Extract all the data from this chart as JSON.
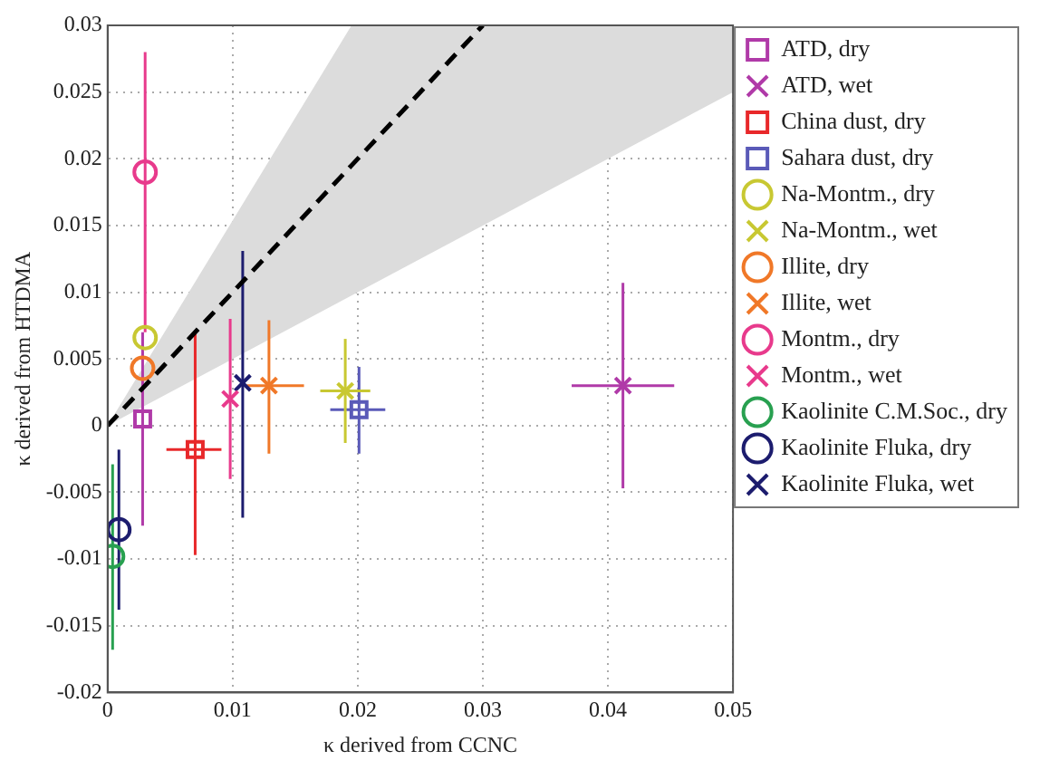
{
  "chart_data": {
    "type": "scatter",
    "xlabel": "κ derived from CCNC",
    "ylabel": "κ derived from HTDMA",
    "xlim": [
      0,
      0.05
    ],
    "xticks": [
      0,
      0.01,
      0.02,
      0.03,
      0.04,
      0.05
    ],
    "ylim": [
      -0.02,
      0.03
    ],
    "yticks": [
      -0.02,
      -0.015,
      -0.01,
      -0.005,
      0,
      0.005,
      0.01,
      0.015,
      0.02,
      0.025,
      0.03
    ],
    "grid": true,
    "legend": "right",
    "line_style": "dashed",
    "series": [
      {
        "type": "line",
        "color": "#000000",
        "marker": "none",
        "x": [
          0,
          0.0195,
          0.03,
          0.05
        ],
        "values": [
          0,
          0.0195,
          0.03,
          null
        ],
        "lower": [
          0,
          0.00975,
          0.015,
          0.025
        ],
        "upper": [
          0,
          0.03,
          0.03,
          0.03
        ]
      },
      {
        "name": "ATD, dry",
        "color": "#b03aa8",
        "marker": "square",
        "x": [
          0.0028
        ],
        "values": [
          0.0005
        ],
        "errors": [
          [
            -0.0075,
            0.007
          ]
        ]
      },
      {
        "name": "ATD, wet",
        "color": "#b03aa8",
        "marker": "cross",
        "x": [
          0.0412
        ],
        "values": [
          0.003
        ],
        "errors": [
          [
            -0.0047,
            0.0107
          ]
        ],
        "xerrors": [
          [
            0.0371,
            0.0453
          ]
        ]
      },
      {
        "name": "China dust, dry",
        "color": "#e8282a",
        "marker": "square",
        "x": [
          0.007
        ],
        "values": [
          -0.0018
        ],
        "errors": [
          [
            -0.0097,
            0.0071
          ]
        ],
        "xerrors": [
          [
            0.0047,
            0.0091
          ]
        ]
      },
      {
        "name": "Sahara dust, dry",
        "color": "#5a5ab8",
        "marker": "square",
        "x": [
          0.0201
        ],
        "values": [
          0.0012
        ],
        "errors": [
          [
            -0.0021,
            0.0044
          ]
        ],
        "xerrors": [
          [
            0.0178,
            0.0222
          ]
        ]
      },
      {
        "name": "Na-Montm., dry",
        "color": "#c8c832",
        "marker": "circle",
        "x": [
          0.003
        ],
        "values": [
          0.0066
        ]
      },
      {
        "name": "Na-Montm., wet",
        "color": "#c8c832",
        "marker": "cross",
        "x": [
          0.019
        ],
        "values": [
          0.0026
        ],
        "errors": [
          [
            -0.0013,
            0.0065
          ]
        ],
        "xerrors": [
          [
            0.017,
            0.021
          ]
        ]
      },
      {
        "name": "Illite, dry",
        "color": "#f07828",
        "marker": "circle",
        "x": [
          0.0028
        ],
        "values": [
          0.0043
        ]
      },
      {
        "name": "Illite, wet",
        "color": "#f07828",
        "marker": "cross",
        "x": [
          0.0129
        ],
        "values": [
          0.003
        ],
        "errors": [
          [
            -0.0021,
            0.0079
          ]
        ],
        "xerrors": [
          [
            0.0111,
            0.0157
          ]
        ]
      },
      {
        "name": "Montm., dry",
        "color": "#e83a8c",
        "marker": "circle",
        "x": [
          0.003
        ],
        "values": [
          0.019
        ],
        "errors": [
          [
            0.007,
            0.028
          ]
        ]
      },
      {
        "name": "Montm., wet",
        "color": "#e83a8c",
        "marker": "cross",
        "x": [
          0.0098
        ],
        "values": [
          0.002
        ],
        "errors": [
          [
            -0.004,
            0.008
          ]
        ]
      },
      {
        "name": "Kaolinite C.M.Soc., dry",
        "color": "#28a050",
        "marker": "circle",
        "x": [
          0.0004
        ],
        "values": [
          -0.0098
        ],
        "errors": [
          [
            -0.0168,
            -0.0029
          ]
        ]
      },
      {
        "name": "Kaolinite Fluka, dry",
        "color": "#1c1c6e",
        "marker": "circle",
        "x": [
          0.0009
        ],
        "values": [
          -0.0078
        ],
        "errors": [
          [
            -0.0138,
            -0.0018
          ]
        ]
      },
      {
        "name": "Kaolinite Fluka, wet",
        "color": "#1c1c6e",
        "marker": "cross",
        "x": [
          0.0108
        ],
        "values": [
          0.0032
        ],
        "errors": [
          [
            -0.0069,
            0.0131
          ]
        ]
      }
    ]
  }
}
